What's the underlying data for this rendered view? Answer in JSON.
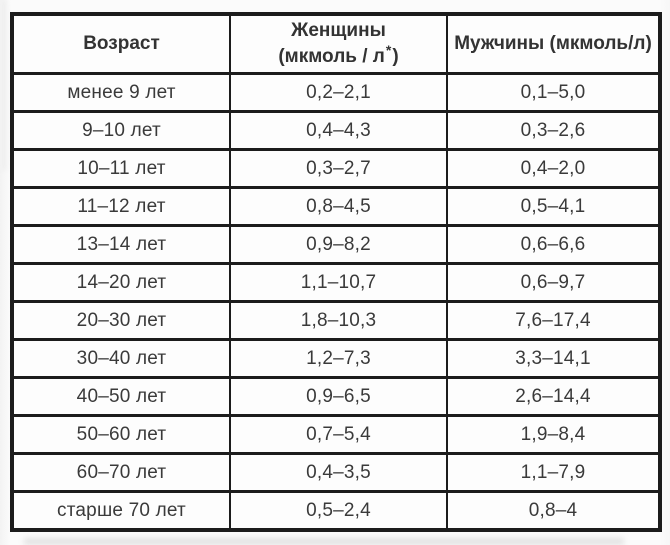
{
  "table": {
    "header": {
      "age": "Возраст",
      "women_line1": "Женщины",
      "women_line2_pre": "(мкмоль / л",
      "women_star": "*",
      "women_line2_post": ")",
      "men": "Мужчины (мкмоль/л)"
    },
    "rows": [
      {
        "age": "менее 9 лет",
        "women": "0,2–2,1",
        "men": "0,1–5,0"
      },
      {
        "age": "9–10 лет",
        "women": "0,4–4,3",
        "men": "0,3–2,6"
      },
      {
        "age": "10–11 лет",
        "women": "0,3–2,7",
        "men": "0,4–2,0"
      },
      {
        "age": "11–12 лет",
        "women": "0,8–4,5",
        "men": "0,5–4,1"
      },
      {
        "age": "13–14 лет",
        "women": "0,9–8,2",
        "men": "0,6–6,6"
      },
      {
        "age": "14–20 лет",
        "women": "1,1–10,7",
        "men": "0,6–9,7"
      },
      {
        "age": "20–30 лет",
        "women": "1,8–10,3",
        "men": "7,6–17,4"
      },
      {
        "age": "30–40 лет",
        "women": "1,2–7,3",
        "men": "3,3–14,1"
      },
      {
        "age": "40–50 лет",
        "women": "0,9–6,5",
        "men": "2,6–14,4"
      },
      {
        "age": "50–60 лет",
        "women": "0,7–5,4",
        "men": "1,9–8,4"
      },
      {
        "age": "60–70 лет",
        "women": "0,4–3,5",
        "men": "1,1–7,9"
      },
      {
        "age": "старше 70 лет",
        "women": "0,5–2,4",
        "men": "0,8–4"
      }
    ]
  },
  "colors": {
    "border": "#1c1c1c",
    "text": "#3a3a3a",
    "background": "#fbfbfb"
  },
  "chart_data": {
    "type": "table",
    "title": "",
    "columns": [
      "Возраст",
      "Женщины (мкмоль / л*)",
      "Мужчины (мкмоль/л)"
    ],
    "rows": [
      [
        "менее 9 лет",
        "0,2–2,1",
        "0,1–5,0"
      ],
      [
        "9–10 лет",
        "0,4–4,3",
        "0,3–2,6"
      ],
      [
        "10–11 лет",
        "0,3–2,7",
        "0,4–2,0"
      ],
      [
        "11–12 лет",
        "0,8–4,5",
        "0,5–4,1"
      ],
      [
        "13–14 лет",
        "0,9–8,2",
        "0,6–6,6"
      ],
      [
        "14–20 лет",
        "1,1–10,7",
        "0,6–9,7"
      ],
      [
        "20–30 лет",
        "1,8–10,3",
        "7,6–17,4"
      ],
      [
        "30–40 лет",
        "1,2–7,3",
        "3,3–14,1"
      ],
      [
        "40–50 лет",
        "0,9–6,5",
        "2,6–14,4"
      ],
      [
        "50–60 лет",
        "0,7–5,4",
        "1,9–8,4"
      ],
      [
        "60–70 лет",
        "0,4–3,5",
        "1,1–7,9"
      ],
      [
        "старше 70 лет",
        "0,5–2,4",
        "0,8–4"
      ]
    ]
  }
}
